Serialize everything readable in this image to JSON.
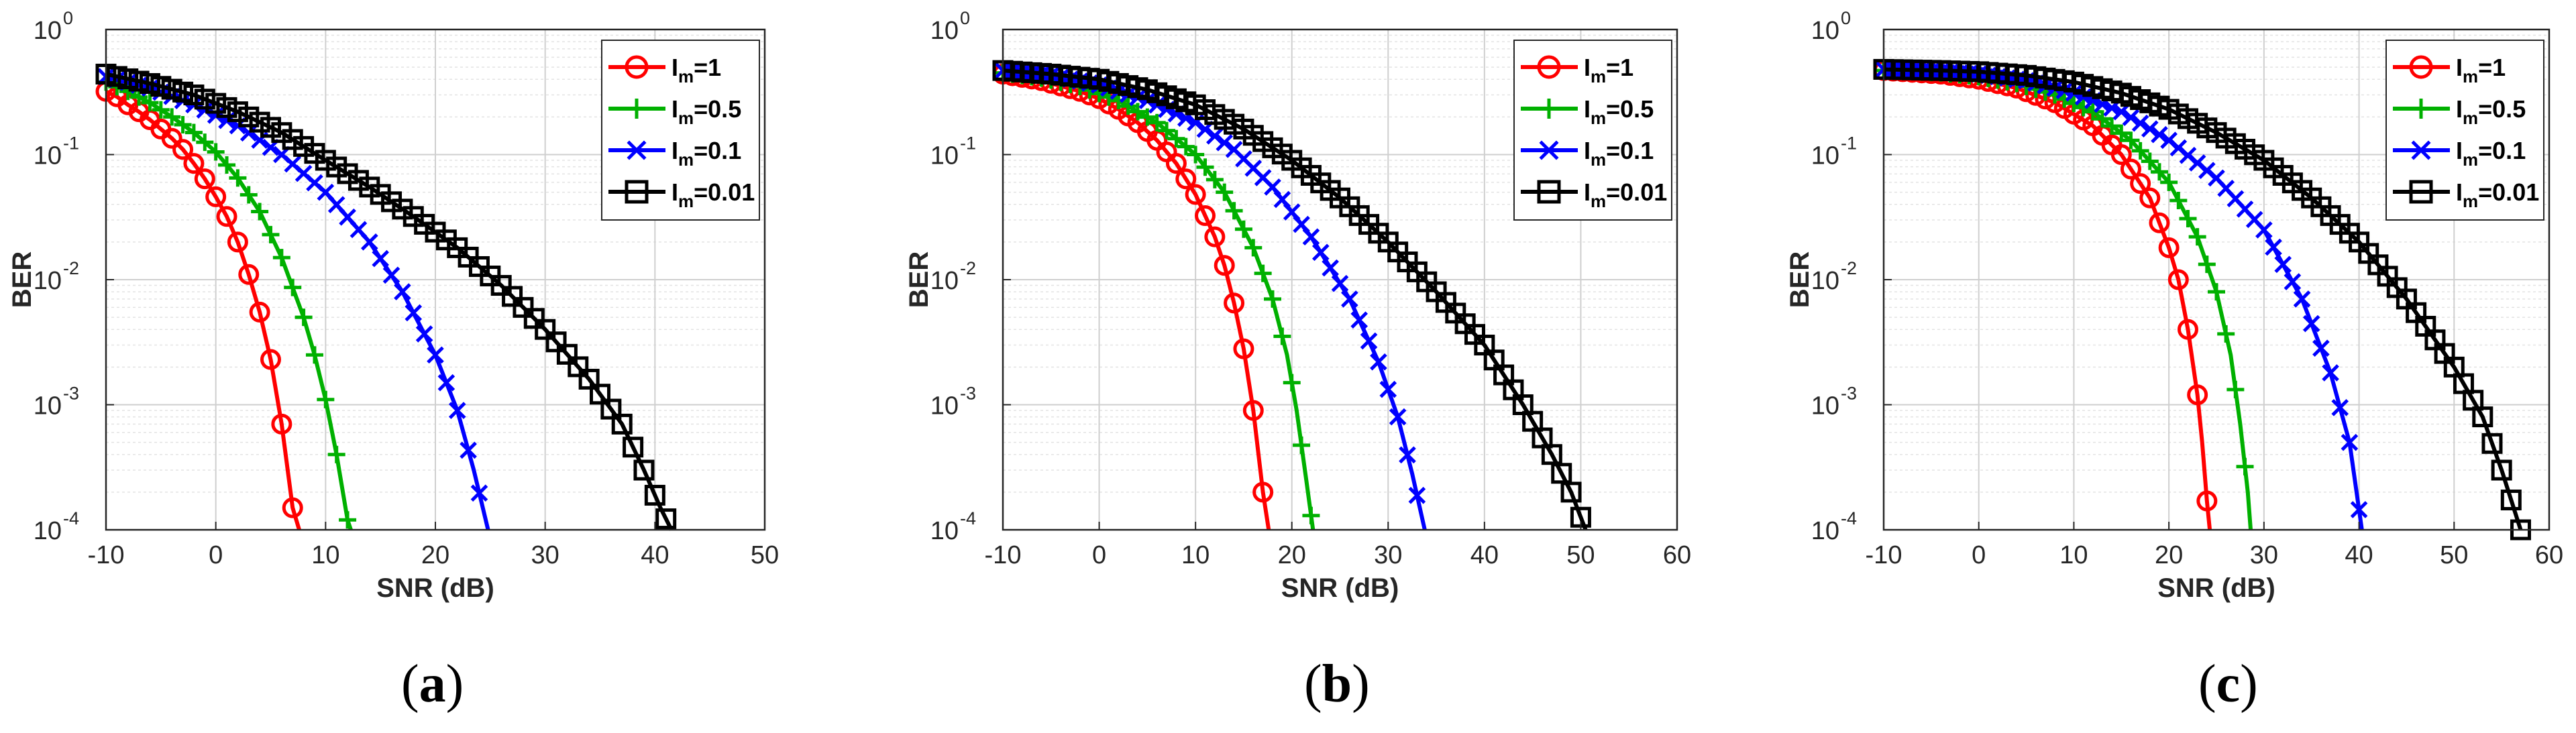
{
  "chart_data": [
    {
      "type": "line",
      "panel_label": "a",
      "xlabel": "SNR (dB)",
      "ylabel": "BER",
      "xlim": [
        -10,
        50
      ],
      "ylim": [
        0.0001,
        1
      ],
      "yscale": "log",
      "grid": true,
      "legend_position": "top-right",
      "xticks": [
        -10,
        0,
        10,
        20,
        30,
        40,
        50
      ],
      "yticks": [
        "10^0",
        "10^-1",
        "10^-2",
        "10^-3",
        "10^-4"
      ],
      "series": [
        {
          "name": "Im=1",
          "sub_base": "I",
          "sub": "m",
          "value": "=1",
          "color": "#ff0000",
          "marker": "circle",
          "points": [
            [
              -10,
              0.32
            ],
            [
              -9,
              0.29
            ],
            [
              -8,
              0.25
            ],
            [
              -7,
              0.22
            ],
            [
              -6,
              0.19
            ],
            [
              -5,
              0.16
            ],
            [
              -4,
              0.135
            ],
            [
              -3,
              0.11
            ],
            [
              -2,
              0.085
            ],
            [
              -1,
              0.064
            ],
            [
              0,
              0.046
            ],
            [
              1,
              0.032
            ],
            [
              2,
              0.02
            ],
            [
              3,
              0.011
            ],
            [
              4,
              0.0055
            ],
            [
              5,
              0.0023
            ],
            [
              6,
              0.0007
            ],
            [
              7,
              0.00015
            ],
            [
              7.6,
              0.0001
            ]
          ]
        },
        {
          "name": "Im=0.5",
          "sub_base": "I",
          "sub": "m",
          "value": "=0.5",
          "color": "#00b000",
          "marker": "plus",
          "points": [
            [
              -10,
              0.38
            ],
            [
              -8,
              0.32
            ],
            [
              -6,
              0.26
            ],
            [
              -4,
              0.2
            ],
            [
              -2,
              0.15
            ],
            [
              0,
              0.105
            ],
            [
              2,
              0.065
            ],
            [
              4,
              0.035
            ],
            [
              6,
              0.015
            ],
            [
              8,
              0.005
            ],
            [
              9,
              0.0025
            ],
            [
              10,
              0.0011
            ],
            [
              11,
              0.0004
            ],
            [
              12,
              0.00012
            ],
            [
              12.3,
              0.0001
            ]
          ]
        },
        {
          "name": "Im=0.1",
          "sub_base": "I",
          "sub": "m",
          "value": "=0.1",
          "color": "#0000ff",
          "marker": "x",
          "points": [
            [
              -10,
              0.42
            ],
            [
              -6,
              0.34
            ],
            [
              -2,
              0.25
            ],
            [
              2,
              0.17
            ],
            [
              6,
              0.1
            ],
            [
              10,
              0.05
            ],
            [
              14,
              0.02
            ],
            [
              17,
              0.008
            ],
            [
              20,
              0.0025
            ],
            [
              22,
              0.0009
            ],
            [
              23.5,
              0.0003
            ],
            [
              24.8,
              0.0001
            ]
          ]
        },
        {
          "name": "Im=0.01",
          "sub_base": "I",
          "sub": "m",
          "value": "=0.01",
          "color": "#000000",
          "marker": "square",
          "points": [
            [
              -10,
              0.44
            ],
            [
              -6,
              0.37
            ],
            [
              -2,
              0.3
            ],
            [
              2,
              0.22
            ],
            [
              6,
              0.15
            ],
            [
              10,
              0.09
            ],
            [
              14,
              0.055
            ],
            [
              18,
              0.032
            ],
            [
              22,
              0.018
            ],
            [
              26,
              0.009
            ],
            [
              30,
              0.004
            ],
            [
              34,
              0.0016
            ],
            [
              37,
              0.0007
            ],
            [
              39,
              0.0003
            ],
            [
              40.5,
              0.00015
            ],
            [
              41.5,
              0.0001
            ]
          ]
        }
      ]
    },
    {
      "type": "line",
      "panel_label": "b",
      "xlabel": "SNR (dB)",
      "ylabel": "BER",
      "xlim": [
        -10,
        60
      ],
      "ylim": [
        0.0001,
        1
      ],
      "yscale": "log",
      "grid": true,
      "legend_position": "top-right",
      "xticks": [
        -10,
        0,
        10,
        20,
        30,
        40,
        50,
        60
      ],
      "yticks": [
        "10^0",
        "10^-1",
        "10^-2",
        "10^-3",
        "10^-4"
      ],
      "series": [
        {
          "name": "Im=1",
          "sub_base": "I",
          "sub": "m",
          "value": "=1",
          "color": "#ff0000",
          "marker": "circle",
          "points": [
            [
              -10,
              0.44
            ],
            [
              -6,
              0.39
            ],
            [
              -2,
              0.32
            ],
            [
              0,
              0.28
            ],
            [
              2,
              0.23
            ],
            [
              4,
              0.18
            ],
            [
              6,
              0.13
            ],
            [
              8,
              0.085
            ],
            [
              10,
              0.048
            ],
            [
              12,
              0.022
            ],
            [
              13,
              0.013
            ],
            [
              14,
              0.0065
            ],
            [
              15,
              0.0028
            ],
            [
              16,
              0.0009
            ],
            [
              17,
              0.0002
            ],
            [
              17.6,
              0.0001
            ]
          ]
        },
        {
          "name": "Im=0.5",
          "sub_base": "I",
          "sub": "m",
          "value": "=0.5",
          "color": "#00b000",
          "marker": "plus",
          "points": [
            [
              -10,
              0.45
            ],
            [
              -6,
              0.41
            ],
            [
              -2,
              0.35
            ],
            [
              2,
              0.27
            ],
            [
              6,
              0.18
            ],
            [
              10,
              0.1
            ],
            [
              13,
              0.05
            ],
            [
              16,
              0.018
            ],
            [
              18,
              0.007
            ],
            [
              19.5,
              0.0025
            ],
            [
              20.5,
              0.0009
            ],
            [
              21.5,
              0.00025
            ],
            [
              22.2,
              0.0001
            ]
          ]
        },
        {
          "name": "Im=0.1",
          "sub_base": "I",
          "sub": "m",
          "value": "=0.1",
          "color": "#0000ff",
          "marker": "x",
          "points": [
            [
              -10,
              0.47
            ],
            [
              -5,
              0.43
            ],
            [
              0,
              0.36
            ],
            [
              5,
              0.27
            ],
            [
              10,
              0.18
            ],
            [
              14,
              0.11
            ],
            [
              18,
              0.055
            ],
            [
              22,
              0.022
            ],
            [
              26,
              0.007
            ],
            [
              29,
              0.0022
            ],
            [
              31,
              0.0008
            ],
            [
              32.5,
              0.00028
            ],
            [
              33.8,
              0.0001
            ]
          ]
        },
        {
          "name": "Im=0.01",
          "sub_base": "I",
          "sub": "m",
          "value": "=0.01",
          "color": "#000000",
          "marker": "square",
          "points": [
            [
              -10,
              0.47
            ],
            [
              -5,
              0.44
            ],
            [
              0,
              0.4
            ],
            [
              5,
              0.33
            ],
            [
              10,
              0.25
            ],
            [
              15,
              0.16
            ],
            [
              20,
              0.09
            ],
            [
              25,
              0.045
            ],
            [
              30,
              0.02
            ],
            [
              35,
              0.008
            ],
            [
              40,
              0.003
            ],
            [
              44,
              0.001
            ],
            [
              47,
              0.0004
            ],
            [
              49,
              0.0002
            ],
            [
              50.5,
              0.0001
            ]
          ]
        }
      ]
    },
    {
      "type": "line",
      "panel_label": "c",
      "xlabel": "SNR (dB)",
      "ylabel": "BER",
      "xlim": [
        -10,
        60
      ],
      "ylim": [
        0.0001,
        1
      ],
      "yscale": "log",
      "grid": true,
      "legend_position": "top-right",
      "xticks": [
        -10,
        0,
        10,
        20,
        30,
        40,
        50,
        60
      ],
      "yticks": [
        "10^0",
        "10^-1",
        "10^-2",
        "10^-3",
        "10^-4"
      ],
      "series": [
        {
          "name": "Im=1",
          "sub_base": "I",
          "sub": "m",
          "value": "=1",
          "color": "#ff0000",
          "marker": "circle",
          "points": [
            [
              -10,
              0.47
            ],
            [
              -4,
              0.44
            ],
            [
              0,
              0.4
            ],
            [
              4,
              0.34
            ],
            [
              8,
              0.26
            ],
            [
              12,
              0.17
            ],
            [
              15,
              0.1
            ],
            [
              18,
              0.045
            ],
            [
              20,
              0.018
            ],
            [
              21,
              0.01
            ],
            [
              22,
              0.004
            ],
            [
              23,
              0.0012
            ],
            [
              23.5,
              0.0005
            ],
            [
              24,
              0.00017
            ],
            [
              24.3,
              0.0001
            ]
          ]
        },
        {
          "name": "Im=0.5",
          "sub_base": "I",
          "sub": "m",
          "value": "=0.5",
          "color": "#00b000",
          "marker": "plus",
          "points": [
            [
              -10,
              0.47
            ],
            [
              -4,
              0.45
            ],
            [
              0,
              0.42
            ],
            [
              4,
              0.37
            ],
            [
              8,
              0.3
            ],
            [
              12,
              0.22
            ],
            [
              16,
              0.13
            ],
            [
              20,
              0.06
            ],
            [
              23,
              0.022
            ],
            [
              25,
              0.008
            ],
            [
              26.5,
              0.0025
            ],
            [
              27.5,
              0.0007
            ],
            [
              28.3,
              0.0002
            ],
            [
              28.6,
              0.0001
            ]
          ]
        },
        {
          "name": "Im=0.1",
          "sub_base": "I",
          "sub": "m",
          "value": "=0.1",
          "color": "#0000ff",
          "marker": "x",
          "points": [
            [
              -10,
              0.48
            ],
            [
              -4,
              0.46
            ],
            [
              0,
              0.44
            ],
            [
              5,
              0.39
            ],
            [
              10,
              0.31
            ],
            [
              15,
              0.22
            ],
            [
              20,
              0.13
            ],
            [
              25,
              0.065
            ],
            [
              30,
              0.025
            ],
            [
              34,
              0.007
            ],
            [
              37,
              0.0018
            ],
            [
              39,
              0.0005
            ],
            [
              40.3,
              0.0001
            ]
          ]
        },
        {
          "name": "Im=0.01",
          "sub_base": "I",
          "sub": "m",
          "value": "=0.01",
          "color": "#000000",
          "marker": "square",
          "points": [
            [
              -10,
              0.48
            ],
            [
              -4,
              0.47
            ],
            [
              0,
              0.46
            ],
            [
              5,
              0.43
            ],
            [
              10,
              0.38
            ],
            [
              15,
              0.31
            ],
            [
              20,
              0.23
            ],
            [
              25,
              0.15
            ],
            [
              30,
              0.09
            ],
            [
              35,
              0.045
            ],
            [
              40,
              0.02
            ],
            [
              45,
              0.007
            ],
            [
              50,
              0.002
            ],
            [
              53,
              0.0008
            ],
            [
              55,
              0.0003
            ],
            [
              57,
              0.0001
            ]
          ]
        }
      ]
    }
  ]
}
